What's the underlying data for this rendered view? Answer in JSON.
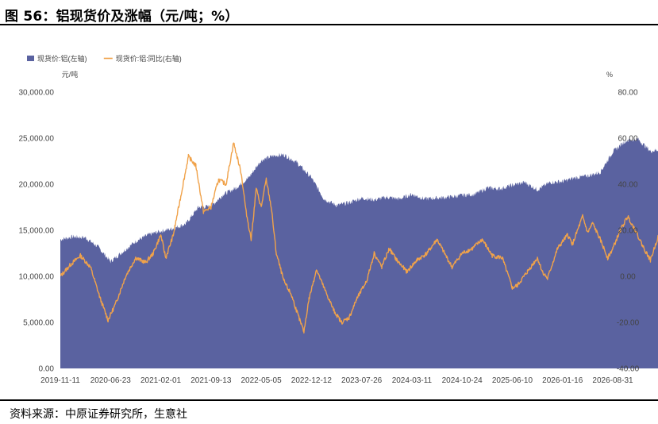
{
  "header": {
    "title": "图 56：铝现货价及涨幅（元/吨；%）"
  },
  "footer": {
    "source": "资料来源：中原证券研究所，生意社"
  },
  "colors": {
    "area": "#5a62a0",
    "line": "#f0a24a",
    "axis_text": "#444444"
  },
  "chart_data": {
    "type": "area",
    "left_unit": "元/吨",
    "right_unit": "%",
    "legend": {
      "placement": "top-left",
      "items": [
        {
          "name": "现货价:铝(左轴)",
          "kind": "area"
        },
        {
          "name": "现货价:铝:同比(右轴)",
          "kind": "line"
        }
      ]
    },
    "x_ticks": [
      "2019-11-11",
      "2020-06-23",
      "2021-02-01",
      "2021-09-13",
      "2022-05-05",
      "2022-12-12",
      "2023-07-26",
      "2024-03-11",
      "2024-10-24",
      "2025-06-10",
      "2026-01-16",
      "2026-08-31"
    ],
    "y_left": {
      "min": 0,
      "max": 30000,
      "ticks": [
        "0.00",
        "5,000.00",
        "10,000.00",
        "15,000.00",
        "20,000.00",
        "25,000.00",
        "30,000.00"
      ]
    },
    "y_right": {
      "min": -40,
      "max": 80,
      "ticks": [
        "-40.00",
        "-20.00",
        "0.00",
        "20.00",
        "40.00",
        "60.00",
        "80.00"
      ]
    },
    "series": [
      {
        "name": "现货价:铝(左轴)",
        "axis": "left",
        "points": [
          [
            0,
            14000
          ],
          [
            0.25,
            14300
          ],
          [
            0.5,
            14200
          ],
          [
            0.75,
            13200
          ],
          [
            1.0,
            11600
          ],
          [
            1.25,
            12700
          ],
          [
            1.5,
            13800
          ],
          [
            1.75,
            14500
          ],
          [
            2.0,
            14900
          ],
          [
            2.25,
            15200
          ],
          [
            2.5,
            15700
          ],
          [
            2.75,
            17500
          ],
          [
            3.0,
            17600
          ],
          [
            3.25,
            18900
          ],
          [
            3.5,
            19600
          ],
          [
            3.75,
            20700
          ],
          [
            4.0,
            22600
          ],
          [
            4.25,
            23100
          ],
          [
            4.45,
            23200
          ],
          [
            4.7,
            22400
          ],
          [
            5.0,
            20700
          ],
          [
            5.25,
            18400
          ],
          [
            5.5,
            17700
          ],
          [
            5.75,
            18000
          ],
          [
            6.0,
            18500
          ],
          [
            6.25,
            18300
          ],
          [
            6.5,
            18600
          ],
          [
            6.75,
            18400
          ],
          [
            7.0,
            18900
          ],
          [
            7.25,
            18400
          ],
          [
            7.5,
            18500
          ],
          [
            7.75,
            18600
          ],
          [
            8.0,
            18800
          ],
          [
            8.25,
            18900
          ],
          [
            8.5,
            19600
          ],
          [
            8.75,
            19500
          ],
          [
            9.0,
            19900
          ],
          [
            9.25,
            20200
          ],
          [
            9.5,
            19400
          ],
          [
            9.75,
            20200
          ],
          [
            10.0,
            20300
          ],
          [
            10.25,
            20700
          ],
          [
            10.5,
            20900
          ],
          [
            10.75,
            21300
          ],
          [
            11.0,
            23500
          ],
          [
            11.25,
            24700
          ],
          [
            11.5,
            24900
          ],
          [
            11.75,
            23600
          ],
          [
            12.0,
            23800
          ]
        ]
      },
      {
        "name": "现货价:铝:同比(右轴)",
        "axis": "right",
        "points": [
          [
            0,
            0
          ],
          [
            0.2,
            5
          ],
          [
            0.4,
            9
          ],
          [
            0.6,
            4
          ],
          [
            0.8,
            -10
          ],
          [
            0.95,
            -19
          ],
          [
            1.1,
            -12
          ],
          [
            1.3,
            0
          ],
          [
            1.5,
            8
          ],
          [
            1.7,
            6
          ],
          [
            1.85,
            10
          ],
          [
            2.0,
            18
          ],
          [
            2.1,
            8
          ],
          [
            2.25,
            18
          ],
          [
            2.4,
            35
          ],
          [
            2.55,
            52
          ],
          [
            2.7,
            48
          ],
          [
            2.85,
            28
          ],
          [
            3.0,
            30
          ],
          [
            3.15,
            42
          ],
          [
            3.3,
            40
          ],
          [
            3.45,
            58
          ],
          [
            3.6,
            45
          ],
          [
            3.7,
            28
          ],
          [
            3.8,
            16
          ],
          [
            3.9,
            38
          ],
          [
            4.0,
            30
          ],
          [
            4.1,
            42
          ],
          [
            4.2,
            30
          ],
          [
            4.3,
            10
          ],
          [
            4.45,
            -2
          ],
          [
            4.6,
            -8
          ],
          [
            4.75,
            -18
          ],
          [
            4.85,
            -24
          ],
          [
            4.95,
            -10
          ],
          [
            5.1,
            3
          ],
          [
            5.25,
            -5
          ],
          [
            5.45,
            -15
          ],
          [
            5.6,
            -20
          ],
          [
            5.75,
            -18
          ],
          [
            5.9,
            -10
          ],
          [
            6.1,
            -2
          ],
          [
            6.25,
            10
          ],
          [
            6.4,
            4
          ],
          [
            6.55,
            12
          ],
          [
            6.7,
            7
          ],
          [
            6.9,
            2
          ],
          [
            7.1,
            7
          ],
          [
            7.3,
            10
          ],
          [
            7.5,
            16
          ],
          [
            7.6,
            12
          ],
          [
            7.8,
            4
          ],
          [
            8.0,
            10
          ],
          [
            8.2,
            12
          ],
          [
            8.4,
            16
          ],
          [
            8.6,
            9
          ],
          [
            8.8,
            8
          ],
          [
            9.0,
            -5
          ],
          [
            9.1,
            -4
          ],
          [
            9.3,
            2
          ],
          [
            9.5,
            8
          ],
          [
            9.6,
            2
          ],
          [
            9.7,
            -1
          ],
          [
            9.9,
            12
          ],
          [
            10.1,
            18
          ],
          [
            10.2,
            14
          ],
          [
            10.4,
            26
          ],
          [
            10.5,
            19
          ],
          [
            10.6,
            23
          ],
          [
            10.75,
            16
          ],
          [
            10.9,
            8
          ],
          [
            11.0,
            12
          ],
          [
            11.15,
            20
          ],
          [
            11.3,
            26
          ],
          [
            11.45,
            20
          ],
          [
            11.6,
            13
          ],
          [
            11.75,
            7
          ],
          [
            11.9,
            17
          ],
          [
            12.0,
            15
          ]
        ]
      }
    ]
  }
}
